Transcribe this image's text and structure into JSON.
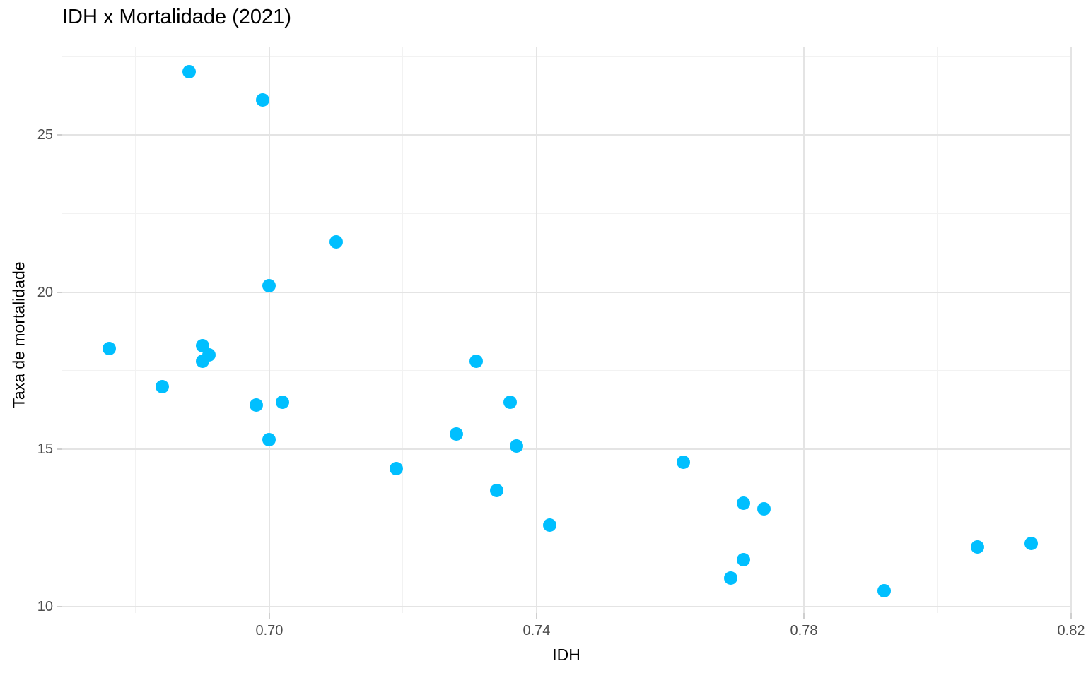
{
  "title": "IDH x Mortalidade (2021)",
  "chart_data": {
    "type": "scatter",
    "title": "IDH x Mortalidade (2021)",
    "xlabel": "IDH",
    "ylabel": "Taxa de mortalidade",
    "xlim": [
      0.669,
      0.82
    ],
    "ylim": [
      9.8,
      27.8
    ],
    "x_ticks": [
      0.7,
      0.74,
      0.78,
      0.82
    ],
    "x_tick_labels": [
      "0.70",
      "0.74",
      "0.78",
      "0.82"
    ],
    "y_ticks": [
      10,
      15,
      20,
      25
    ],
    "y_tick_labels": [
      "10",
      "15",
      "20",
      "25"
    ],
    "x_minor_ticks": [
      0.68,
      0.72,
      0.76,
      0.8
    ],
    "y_minor_ticks": [
      12.5,
      17.5,
      22.5,
      27.5
    ],
    "grid": true,
    "legend": false,
    "background": "#ffffff",
    "point_color": "#00BFFF",
    "points": [
      {
        "x": 0.688,
        "y": 27.0
      },
      {
        "x": 0.699,
        "y": 26.1
      },
      {
        "x": 0.71,
        "y": 21.6
      },
      {
        "x": 0.7,
        "y": 20.2
      },
      {
        "x": 0.676,
        "y": 18.2
      },
      {
        "x": 0.69,
        "y": 18.3
      },
      {
        "x": 0.691,
        "y": 18.0
      },
      {
        "x": 0.69,
        "y": 17.8
      },
      {
        "x": 0.684,
        "y": 17.0
      },
      {
        "x": 0.698,
        "y": 16.4
      },
      {
        "x": 0.702,
        "y": 16.5
      },
      {
        "x": 0.7,
        "y": 15.3
      },
      {
        "x": 0.731,
        "y": 17.8
      },
      {
        "x": 0.736,
        "y": 16.5
      },
      {
        "x": 0.728,
        "y": 15.5
      },
      {
        "x": 0.737,
        "y": 15.1
      },
      {
        "x": 0.719,
        "y": 14.4
      },
      {
        "x": 0.734,
        "y": 13.7
      },
      {
        "x": 0.742,
        "y": 12.6
      },
      {
        "x": 0.762,
        "y": 14.6
      },
      {
        "x": 0.771,
        "y": 13.3
      },
      {
        "x": 0.774,
        "y": 13.1
      },
      {
        "x": 0.771,
        "y": 11.5
      },
      {
        "x": 0.769,
        "y": 10.9
      },
      {
        "x": 0.792,
        "y": 10.5
      },
      {
        "x": 0.806,
        "y": 11.9
      },
      {
        "x": 0.814,
        "y": 12.0
      }
    ],
    "colors": {
      "grid_major": "#e4e4e4",
      "grid_minor": "#f2f2f2",
      "tick_mark": "#cfcfcf",
      "tick_label_text": "#4d4d4d",
      "title_text": "#000000"
    }
  }
}
